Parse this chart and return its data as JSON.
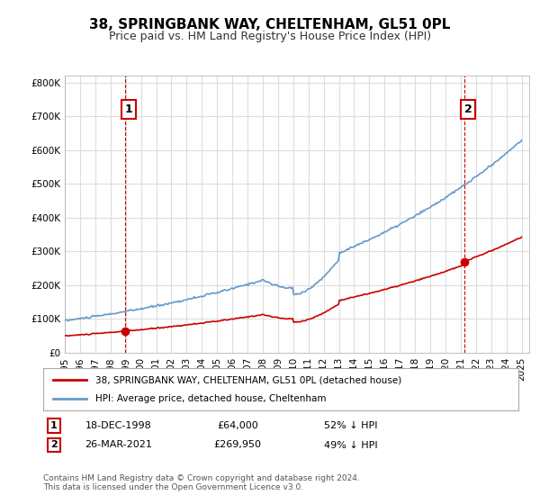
{
  "title": "38, SPRINGBANK WAY, CHELTENHAM, GL51 0PL",
  "subtitle": "Price paid vs. HM Land Registry's House Price Index (HPI)",
  "legend_line1": "38, SPRINGBANK WAY, CHELTENHAM, GL51 0PL (detached house)",
  "legend_line2": "HPI: Average price, detached house, Cheltenham",
  "transaction1_label": "1",
  "transaction1_date": "18-DEC-1998",
  "transaction1_price": "£64,000",
  "transaction1_hpi": "52% ↓ HPI",
  "transaction1_year": 1998.96,
  "transaction1_value": 64000,
  "transaction2_label": "2",
  "transaction2_date": "26-MAR-2021",
  "transaction2_price": "£269,950",
  "transaction2_hpi": "49% ↓ HPI",
  "transaction2_year": 2021.23,
  "transaction2_value": 269950,
  "footer": "Contains HM Land Registry data © Crown copyright and database right 2024.\nThis data is licensed under the Open Government Licence v3.0.",
  "red_color": "#cc0000",
  "blue_color": "#6699cc",
  "background_color": "#ffffff",
  "grid_color": "#dddddd",
  "xlim": [
    1995.0,
    2025.5
  ],
  "ylim": [
    0,
    820000
  ],
  "yticks": [
    0,
    100000,
    200000,
    300000,
    400000,
    500000,
    600000,
    700000,
    800000
  ]
}
